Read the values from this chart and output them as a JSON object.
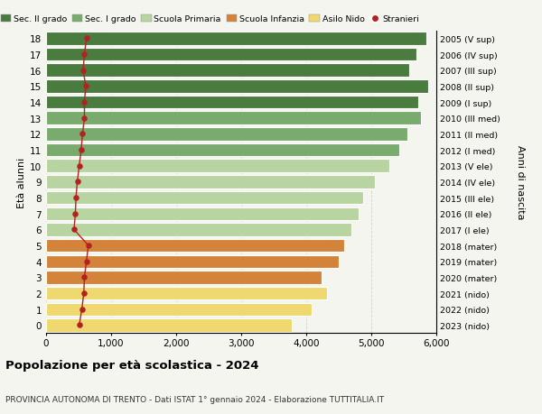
{
  "ages": [
    18,
    17,
    16,
    15,
    14,
    13,
    12,
    11,
    10,
    9,
    8,
    7,
    6,
    5,
    4,
    3,
    2,
    1,
    0
  ],
  "right_labels": [
    "2005 (V sup)",
    "2006 (IV sup)",
    "2007 (III sup)",
    "2008 (II sup)",
    "2009 (I sup)",
    "2010 (III med)",
    "2011 (II med)",
    "2012 (I med)",
    "2013 (V ele)",
    "2014 (IV ele)",
    "2015 (III ele)",
    "2016 (II ele)",
    "2017 (I ele)",
    "2018 (mater)",
    "2019 (mater)",
    "2020 (mater)",
    "2021 (nido)",
    "2022 (nido)",
    "2023 (nido)"
  ],
  "bar_values": [
    5850,
    5700,
    5580,
    5870,
    5720,
    5760,
    5550,
    5430,
    5280,
    5060,
    4880,
    4800,
    4700,
    4580,
    4500,
    4230,
    4320,
    4080,
    3780
  ],
  "stranieri_values": [
    620,
    590,
    570,
    610,
    590,
    590,
    560,
    540,
    510,
    480,
    460,
    450,
    430,
    650,
    620,
    590,
    580,
    550,
    510
  ],
  "bar_colors": [
    "#4a7c3f",
    "#4a7c3f",
    "#4a7c3f",
    "#4a7c3f",
    "#4a7c3f",
    "#7aab6e",
    "#7aab6e",
    "#7aab6e",
    "#b8d4a0",
    "#b8d4a0",
    "#b8d4a0",
    "#b8d4a0",
    "#b8d4a0",
    "#d4843a",
    "#d4843a",
    "#d4843a",
    "#f0d870",
    "#f0d870",
    "#f0d870"
  ],
  "legend_labels": [
    "Sec. II grado",
    "Sec. I grado",
    "Scuola Primaria",
    "Scuola Infanzia",
    "Asilo Nido",
    "Stranieri"
  ],
  "legend_colors": [
    "#4a7c3f",
    "#7aab6e",
    "#b8d4a0",
    "#d4843a",
    "#f0d870",
    "#b22222"
  ],
  "title": "Popolazione per età scolastica - 2024",
  "subtitle": "PROVINCIA AUTONOMA DI TRENTO - Dati ISTAT 1° gennaio 2024 - Elaborazione TUTTITALIA.IT",
  "ylabel": "Età alunni",
  "right_ylabel": "Anni di nascita",
  "xlim": [
    0,
    6000
  ],
  "xticks": [
    0,
    1000,
    2000,
    3000,
    4000,
    5000,
    6000
  ],
  "xtick_labels": [
    "0",
    "1,000",
    "2,000",
    "3,000",
    "4,000",
    "5,000",
    "6,000"
  ],
  "bar_height": 0.82,
  "background_color": "#f5f5f0",
  "grid_color": "#cccccc",
  "stranieri_color": "#b22222",
  "stranieri_dot_size": 22
}
